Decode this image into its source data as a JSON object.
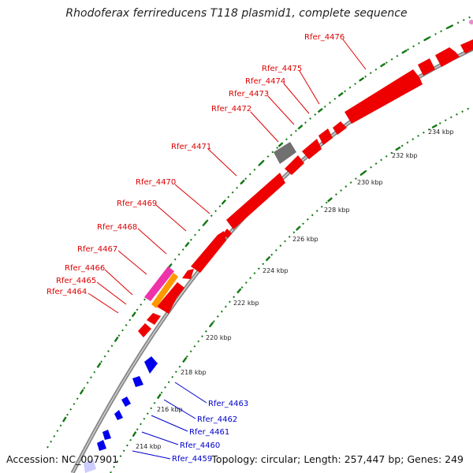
{
  "title": "Rhodoferax ferrireducens T118 plasmid1, complete sequence",
  "footer": {
    "accession_label": "Accession:",
    "accession": "NC_007901",
    "topology_label": "Topology:",
    "topology": "circular",
    "length_label": "Length:",
    "length": "257,447 bp",
    "genes_label": "Genes:",
    "genes": "249"
  },
  "colors": {
    "forward_gene": "#ee0000",
    "reverse_gene": "#0000ee",
    "gray_feature": "#707070",
    "magenta_feature": "#ee33aa",
    "orange_feature": "#ff9900",
    "backbone": "#909090",
    "tick": "#117711"
  },
  "ruler": {
    "tick_labels": [
      "214 kbp",
      "216 kbp",
      "218 kbp",
      "220 kbp",
      "222 kbp",
      "224 kbp",
      "226 kbp",
      "228 kbp",
      "230 kbp",
      "232 kbp",
      "234 kbp"
    ]
  },
  "forward_labels": [
    "Rfer_4464",
    "Rfer_4465",
    "Rfer_4466",
    "Rfer_4467",
    "Rfer_4468",
    "Rfer_4469",
    "Rfer_4470",
    "Rfer_4471",
    "Rfer_4472",
    "Rfer_4473",
    "Rfer_4474",
    "Rfer_4475",
    "Rfer_4476"
  ],
  "reverse_labels": [
    "Rfer_4459",
    "Rfer_4460",
    "Rfer_4461",
    "Rfer_4462",
    "Rfer_4463"
  ]
}
